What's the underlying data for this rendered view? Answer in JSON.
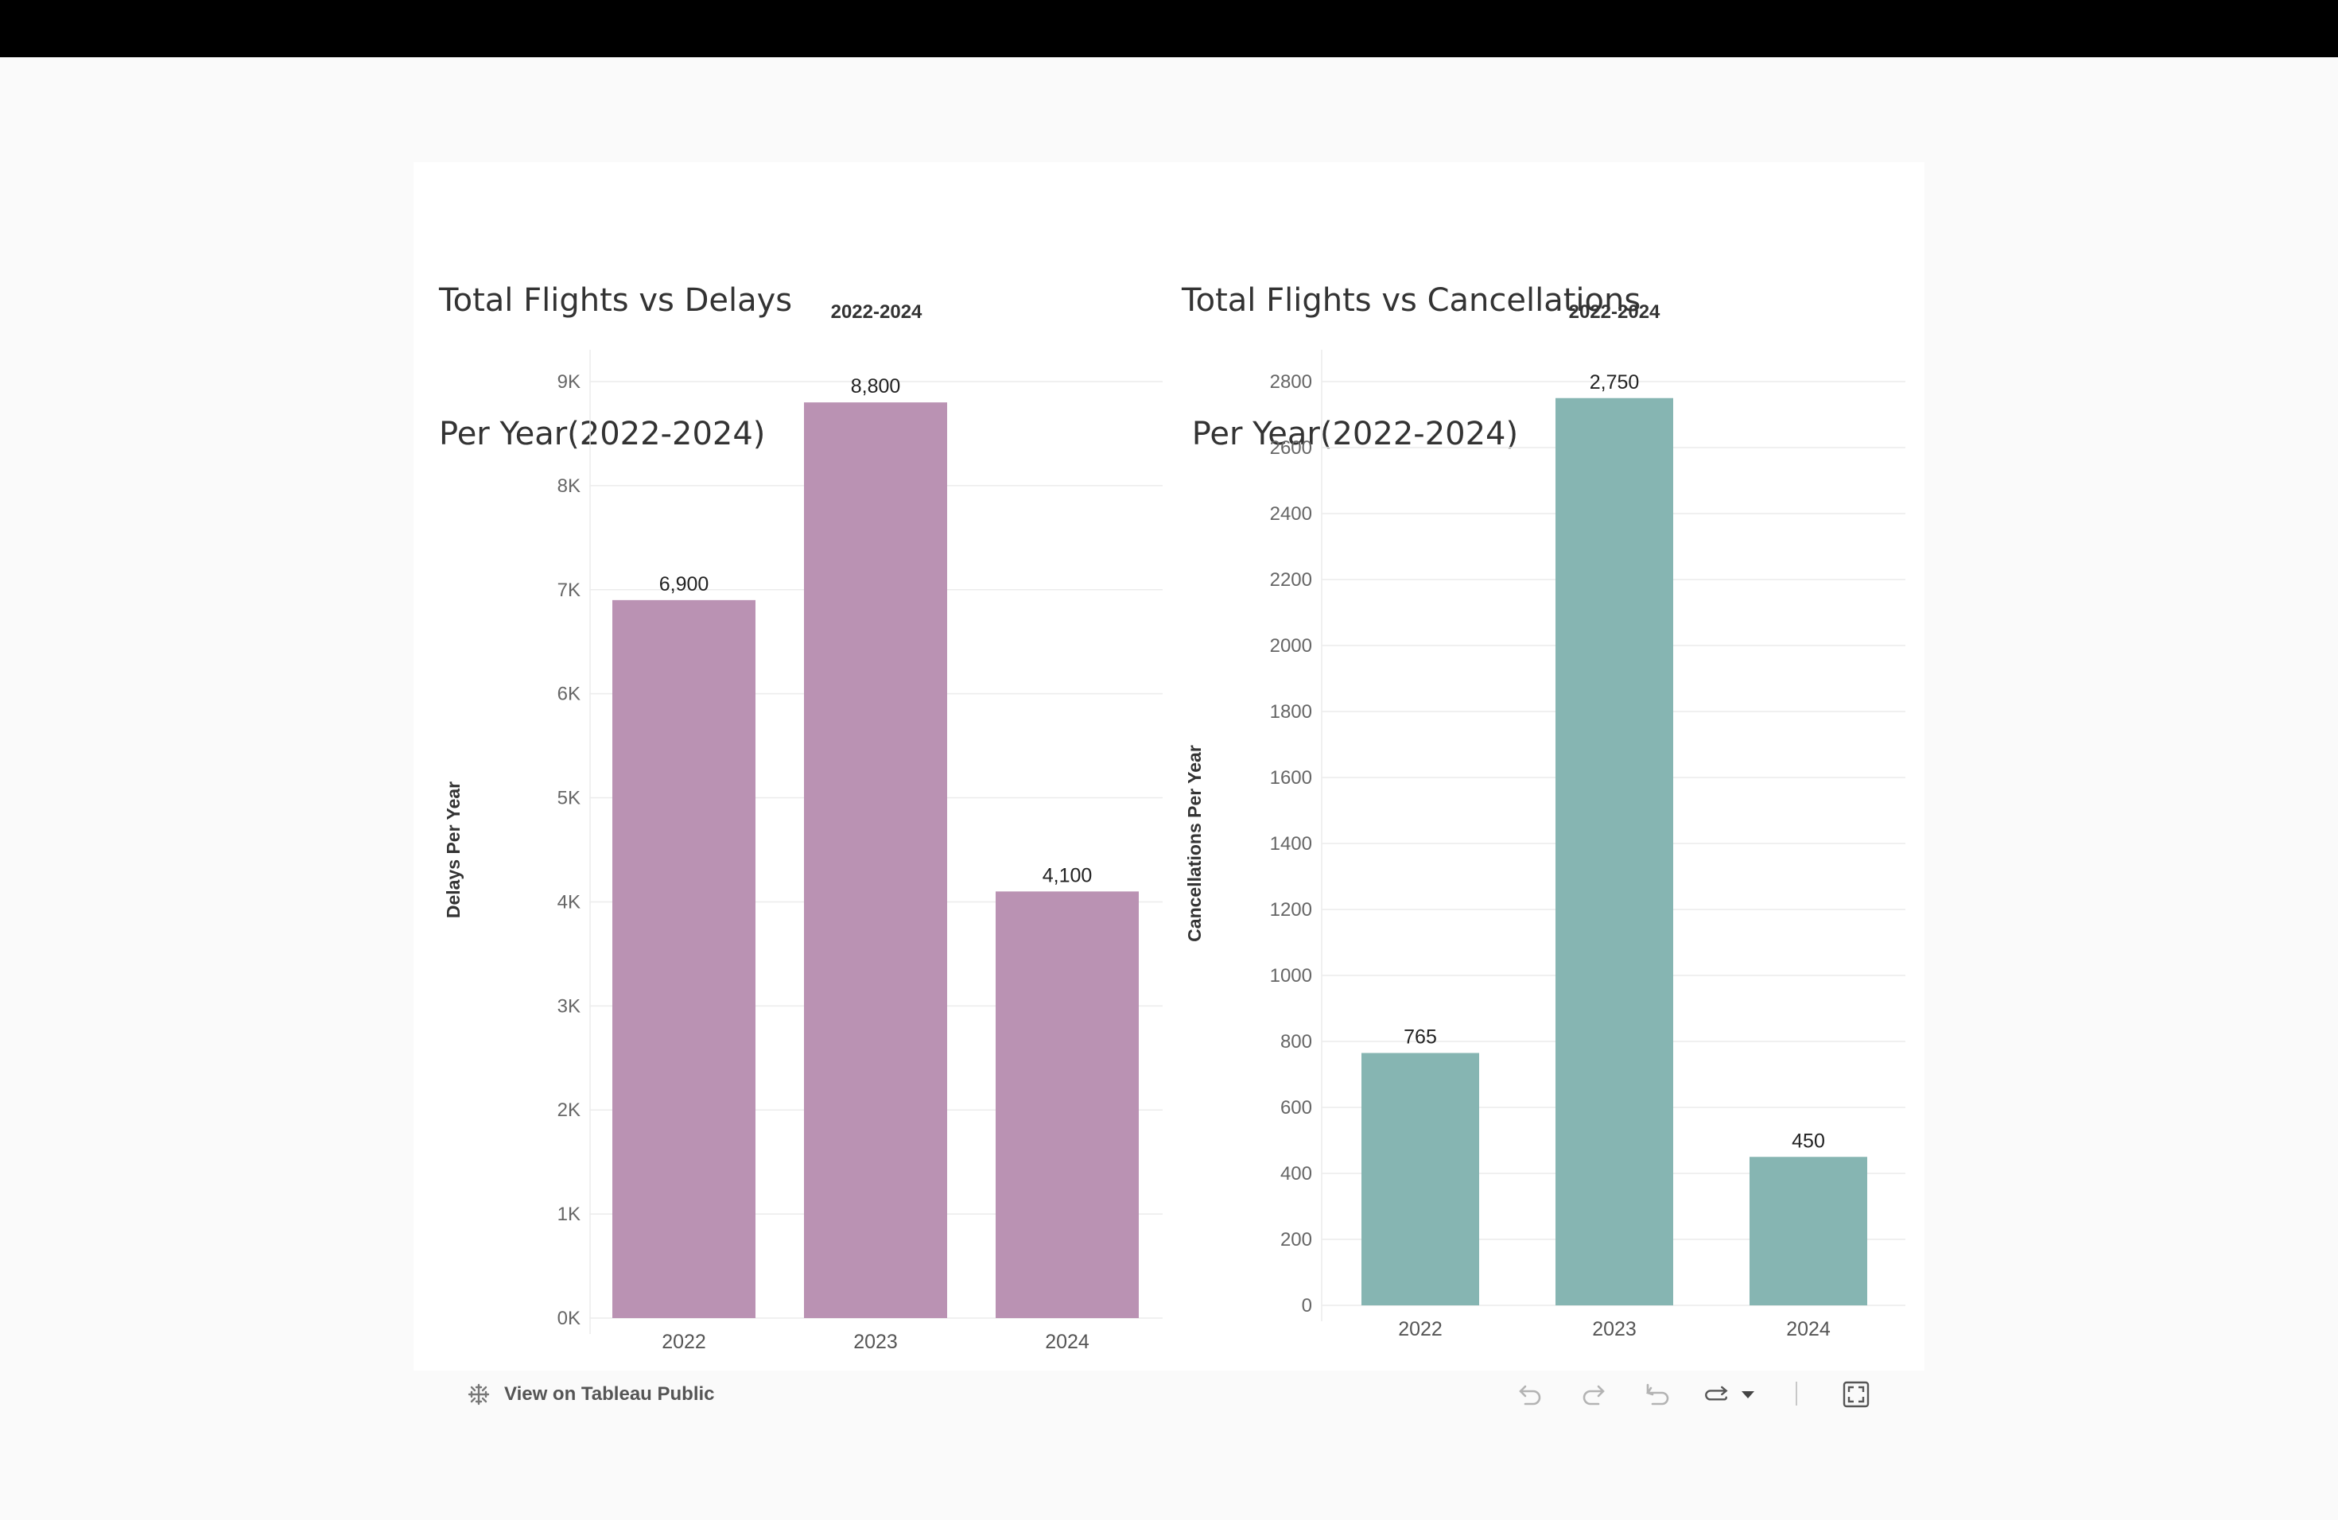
{
  "footer": {
    "tableau_label": "View on Tableau Public"
  },
  "icons": [
    "tableau-logo-icon",
    "undo-icon",
    "redo-icon",
    "revert-icon",
    "refresh-icon",
    "dropdown-icon",
    "fullscreen-icon"
  ],
  "chart_data": [
    {
      "type": "bar",
      "title_line1": "Total Flights vs Delays",
      "title_line2": "Per Year(2022-2024)",
      "header": "2022-2024",
      "ylabel": "Delays Per Year",
      "categories": [
        "2022",
        "2023",
        "2024"
      ],
      "values": [
        6900,
        8800,
        4100
      ],
      "data_labels": [
        "6,900",
        "8,800",
        "4,100"
      ],
      "ylim": [
        0,
        9000
      ],
      "yticks": [
        0,
        1000,
        2000,
        3000,
        4000,
        5000,
        6000,
        7000,
        8000,
        9000
      ],
      "ytick_labels": [
        "0K",
        "1K",
        "2K",
        "3K",
        "4K",
        "5K",
        "6K",
        "7K",
        "8K",
        "9K"
      ],
      "color": "#ba92b3",
      "grid": true
    },
    {
      "type": "bar",
      "title_line1": "Total Flights vs Cancellations",
      "title_line2": " Per Year(2022-2024)",
      "header": "2022-2024",
      "ylabel": "Cancellations Per Year",
      "categories": [
        "2022",
        "2023",
        "2024"
      ],
      "values": [
        765,
        2750,
        450
      ],
      "data_labels": [
        "765",
        "2,750",
        "450"
      ],
      "ylim": [
        0,
        2800
      ],
      "yticks": [
        0,
        200,
        400,
        600,
        800,
        1000,
        1200,
        1400,
        1600,
        1800,
        2000,
        2200,
        2400,
        2600,
        2800
      ],
      "ytick_labels": [
        "0",
        "200",
        "400",
        "600",
        "800",
        "1000",
        "1200",
        "1400",
        "1600",
        "1800",
        "2000",
        "2200",
        "2400",
        "2600",
        "2800"
      ],
      "color": "#86b5b2",
      "grid": true
    }
  ]
}
